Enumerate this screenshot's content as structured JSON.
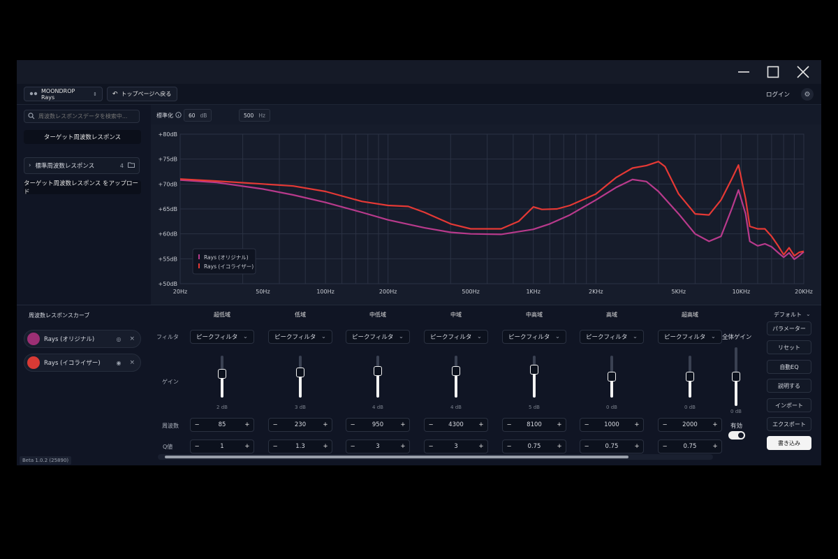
{
  "window": {
    "minimize_icon": "minimize-icon",
    "maximize_icon": "maximize-icon",
    "close_icon": "close-icon"
  },
  "toolbar": {
    "device": "MOONDROP Rays",
    "back": "トップページへ戻る",
    "login": "ログイン"
  },
  "left": {
    "search_placeholder": "周波数レスポンスデータを検索中...",
    "target_button": "ターゲット周波数レスポンス",
    "tree_label": "標準周波数レスポンス",
    "tree_count": "4",
    "upload_button": "ターゲット周波数レスポンス をアップロード"
  },
  "chartbar": {
    "normalize_label": "標準化",
    "norm_db_value": "60",
    "norm_db_unit": "dB",
    "norm_hz_value": "500",
    "norm_hz_unit": "Hz"
  },
  "chart_data": {
    "type": "line",
    "x_scale": "log",
    "xlim": [
      20,
      20000
    ],
    "ylim": [
      50,
      80
    ],
    "y_ticks": [
      "+80dB",
      "+75dB",
      "+70dB",
      "+65dB",
      "+60dB",
      "+55dB",
      "+50dB"
    ],
    "x_ticks": [
      "20Hz",
      "50Hz",
      "100Hz",
      "200Hz",
      "500Hz",
      "1KHz",
      "2KHz",
      "5KHz",
      "10KHz",
      "20KHz"
    ],
    "legend_position": "bottom-left",
    "series": [
      {
        "name": "Rays (オリジナル)",
        "color": "#b83a8c",
        "points": [
          [
            20,
            70.8
          ],
          [
            30,
            70.3
          ],
          [
            50,
            69.0
          ],
          [
            70,
            67.8
          ],
          [
            100,
            66.3
          ],
          [
            150,
            64.3
          ],
          [
            200,
            62.8
          ],
          [
            300,
            61.2
          ],
          [
            400,
            60.3
          ],
          [
            500,
            60.0
          ],
          [
            700,
            59.9
          ],
          [
            1000,
            60.9
          ],
          [
            1200,
            62.0
          ],
          [
            1500,
            63.8
          ],
          [
            2000,
            66.8
          ],
          [
            2500,
            69.3
          ],
          [
            3000,
            70.9
          ],
          [
            3500,
            70.5
          ],
          [
            4000,
            68.5
          ],
          [
            5000,
            64.0
          ],
          [
            6000,
            60.0
          ],
          [
            7000,
            58.5
          ],
          [
            8000,
            59.5
          ],
          [
            9000,
            65.0
          ],
          [
            9700,
            68.8
          ],
          [
            10500,
            64.0
          ],
          [
            11000,
            58.5
          ],
          [
            12000,
            57.6
          ],
          [
            13000,
            58.0
          ],
          [
            14000,
            57.4
          ],
          [
            15000,
            56.3
          ],
          [
            16000,
            55.3
          ],
          [
            17000,
            56.2
          ],
          [
            18000,
            54.9
          ],
          [
            19000,
            55.6
          ],
          [
            20000,
            56.4
          ]
        ]
      },
      {
        "name": "Rays (イコライザー)",
        "color": "#e53935",
        "points": [
          [
            20,
            71.0
          ],
          [
            30,
            70.6
          ],
          [
            50,
            70.0
          ],
          [
            70,
            69.6
          ],
          [
            100,
            68.5
          ],
          [
            150,
            66.5
          ],
          [
            200,
            65.7
          ],
          [
            250,
            65.5
          ],
          [
            300,
            64.3
          ],
          [
            400,
            62.0
          ],
          [
            500,
            61.0
          ],
          [
            700,
            61.0
          ],
          [
            850,
            62.5
          ],
          [
            1000,
            65.4
          ],
          [
            1100,
            64.9
          ],
          [
            1300,
            65.0
          ],
          [
            1500,
            65.7
          ],
          [
            2000,
            68.0
          ],
          [
            2500,
            71.3
          ],
          [
            3000,
            73.2
          ],
          [
            3500,
            73.7
          ],
          [
            4000,
            74.5
          ],
          [
            4300,
            73.5
          ],
          [
            5000,
            68.0
          ],
          [
            6000,
            64.0
          ],
          [
            7000,
            63.8
          ],
          [
            8000,
            66.8
          ],
          [
            9000,
            71.0
          ],
          [
            9700,
            73.8
          ],
          [
            10500,
            67.0
          ],
          [
            11000,
            61.5
          ],
          [
            12000,
            61.0
          ],
          [
            13000,
            61.0
          ],
          [
            14000,
            59.5
          ],
          [
            15000,
            57.7
          ],
          [
            16000,
            55.8
          ],
          [
            17000,
            57.2
          ],
          [
            18000,
            55.6
          ],
          [
            19000,
            56.3
          ],
          [
            20000,
            56.5
          ]
        ]
      }
    ]
  },
  "bottom": {
    "section_label": "周波数レスポンスカーブ",
    "preset": "デフォルト",
    "curves": [
      {
        "name": "Rays (オリジナル)",
        "color": "#9c2f74"
      },
      {
        "name": "Rays (イコライザー)",
        "color": "#d83a35"
      }
    ],
    "row_labels": {
      "filter": "フィルタ",
      "gain": "ゲイン",
      "freq": "周波数",
      "q": "Q値"
    },
    "bands": [
      {
        "name": "超低域",
        "filter": "ピークフィルタ",
        "gain": "2 dB",
        "gain_db": 2,
        "freq": "85",
        "q": "1"
      },
      {
        "name": "低域",
        "filter": "ピークフィルタ",
        "gain": "3 dB",
        "gain_db": 3,
        "freq": "230",
        "q": "1.3"
      },
      {
        "name": "中低域",
        "filter": "ピークフィルタ",
        "gain": "4 dB",
        "gain_db": 4,
        "freq": "950",
        "q": "3"
      },
      {
        "name": "中域",
        "filter": "ピークフィルタ",
        "gain": "4 dB",
        "gain_db": 4,
        "freq": "4300",
        "q": "3"
      },
      {
        "name": "中高域",
        "filter": "ピークフィルタ",
        "gain": "5 dB",
        "gain_db": 5,
        "freq": "8100",
        "q": "0.75"
      },
      {
        "name": "高域",
        "filter": "ピークフィルタ",
        "gain": "0 dB",
        "gain_db": 0,
        "freq": "1000",
        "q": "0.75"
      },
      {
        "name": "超高域",
        "filter": "ピークフィルタ",
        "gain": "0 dB",
        "gain_db": 0,
        "freq": "2000",
        "q": "0.75"
      }
    ],
    "global_gain_label": "全体ゲイン",
    "global_gain": "0 dB",
    "global_gain_db": 0,
    "enable_label": "有効",
    "enabled": true,
    "buttons": {
      "params": "パラメーター",
      "reset": "リセット",
      "auto_eq": "自動EQ",
      "describe": "説明する",
      "import": "インポート",
      "export": "エクスポート",
      "write": "書き込み"
    },
    "version": "Beta 1.0.2 (25890)"
  }
}
